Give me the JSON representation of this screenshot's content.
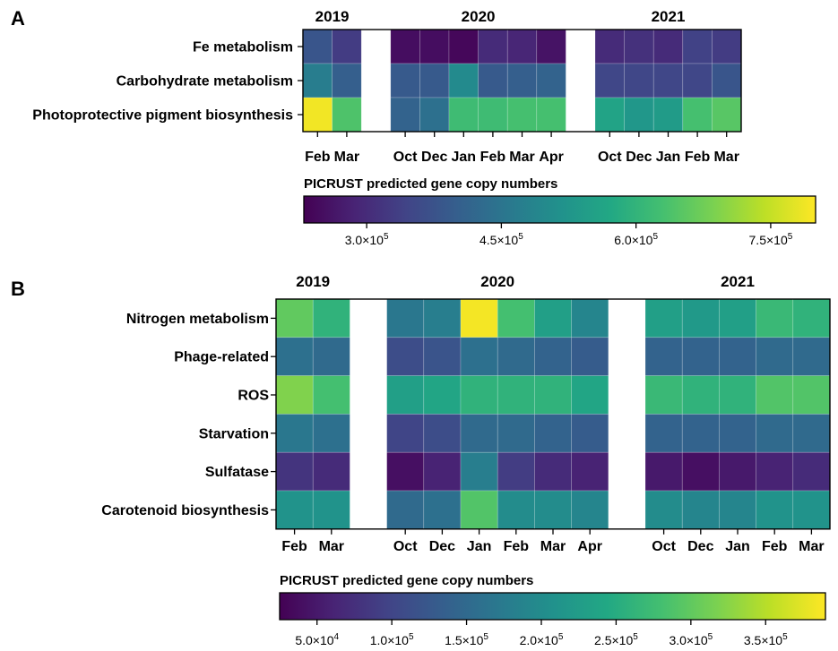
{
  "chart_data": [
    {
      "panel": "A",
      "type": "heatmap",
      "years": [
        "2019",
        "2020",
        "2021"
      ],
      "columns": [
        "Feb",
        "Mar",
        "",
        "Oct",
        "Dec",
        "Jan",
        "Feb",
        "Mar",
        "Apr",
        "",
        "Oct",
        "Dec",
        "Jan",
        "Feb",
        "Mar"
      ],
      "rows": [
        "Fe metabolism",
        "Carbohydrate metabolism",
        "Photoprotective pigment biosynthesis"
      ],
      "values": [
        [
          380000,
          330000,
          null,
          250000,
          250000,
          240000,
          300000,
          290000,
          260000,
          null,
          300000,
          310000,
          300000,
          340000,
          330000
        ],
        [
          470000,
          400000,
          null,
          390000,
          390000,
          500000,
          390000,
          400000,
          410000,
          null,
          350000,
          350000,
          350000,
          350000,
          380000
        ],
        [
          790000,
          640000,
          null,
          410000,
          440000,
          620000,
          620000,
          630000,
          630000,
          null,
          560000,
          530000,
          540000,
          630000,
          650000
        ]
      ],
      "colorbar": {
        "title": "PICRUST predicted gene copy numbers",
        "min": 230000,
        "max": 800000,
        "ticks": [
          {
            "value": 300000,
            "mantissa": "3.0×10",
            "exponent": "5"
          },
          {
            "value": 450000,
            "mantissa": "4.5×10",
            "exponent": "5"
          },
          {
            "value": 600000,
            "mantissa": "6.0×10",
            "exponent": "5"
          },
          {
            "value": 750000,
            "mantissa": "7.5×10",
            "exponent": "5"
          }
        ]
      }
    },
    {
      "panel": "B",
      "type": "heatmap",
      "years": [
        "2019",
        "2020",
        "2021"
      ],
      "columns": [
        "Feb",
        "Mar",
        "",
        "Oct",
        "Dec",
        "Jan",
        "Feb",
        "Mar",
        "Apr",
        "",
        "Oct",
        "Dec",
        "Jan",
        "Feb",
        "Mar"
      ],
      "rows": [
        "Nitrogen metabolism",
        "Phage-related",
        "ROS",
        "Starvation",
        "Sulfatase",
        "Carotenoid biosynthesis"
      ],
      "values": [
        [
          300000,
          260000,
          null,
          170000,
          180000,
          385000,
          280000,
          230000,
          190000,
          null,
          230000,
          220000,
          230000,
          270000,
          260000
        ],
        [
          160000,
          150000,
          null,
          110000,
          120000,
          160000,
          150000,
          140000,
          130000,
          null,
          140000,
          140000,
          140000,
          150000,
          150000
        ],
        [
          320000,
          280000,
          null,
          230000,
          240000,
          260000,
          260000,
          260000,
          240000,
          null,
          270000,
          260000,
          260000,
          290000,
          290000
        ],
        [
          170000,
          160000,
          null,
          100000,
          110000,
          150000,
          150000,
          140000,
          130000,
          null,
          140000,
          140000,
          140000,
          150000,
          150000
        ],
        [
          80000,
          70000,
          null,
          40000,
          60000,
          180000,
          90000,
          70000,
          60000,
          null,
          50000,
          40000,
          50000,
          60000,
          70000
        ],
        [
          210000,
          210000,
          null,
          150000,
          160000,
          290000,
          200000,
          200000,
          190000,
          null,
          200000,
          190000,
          190000,
          210000,
          210000
        ]
      ],
      "colorbar": {
        "title": "PICRUST predicted gene copy numbers",
        "min": 25000,
        "max": 390000,
        "ticks": [
          {
            "value": 50000,
            "mantissa": "5.0×10",
            "exponent": "4"
          },
          {
            "value": 100000,
            "mantissa": "1.0×10",
            "exponent": "5"
          },
          {
            "value": 150000,
            "mantissa": "1.5×10",
            "exponent": "5"
          },
          {
            "value": 200000,
            "mantissa": "2.0×10",
            "exponent": "5"
          },
          {
            "value": 250000,
            "mantissa": "2.5×10",
            "exponent": "5"
          },
          {
            "value": 300000,
            "mantissa": "3.0×10",
            "exponent": "5"
          },
          {
            "value": 350000,
            "mantissa": "3.5×10",
            "exponent": "5"
          }
        ]
      }
    }
  ]
}
